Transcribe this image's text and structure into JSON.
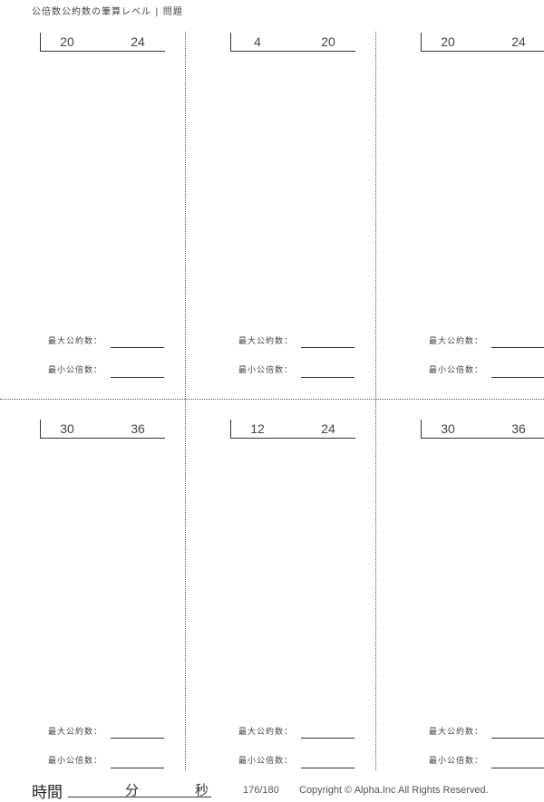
{
  "header": {
    "title": "公倍数公約数の筆算レベル | 問題"
  },
  "labels": {
    "gcd": "最大公約数：",
    "lcm": "最小公倍数："
  },
  "problems": [
    {
      "a": "20",
      "b": "24"
    },
    {
      "a": "4",
      "b": "20"
    },
    {
      "a": "20",
      "b": "24"
    },
    {
      "a": "30",
      "b": "36"
    },
    {
      "a": "12",
      "b": "24"
    },
    {
      "a": "30",
      "b": "36"
    }
  ],
  "footer": {
    "time_label": "時間",
    "minutes_label": "分",
    "seconds_label": "秒",
    "page": "176/180",
    "copyright": "Copyright ©  Alpha.Inc All Rights Reserved."
  }
}
